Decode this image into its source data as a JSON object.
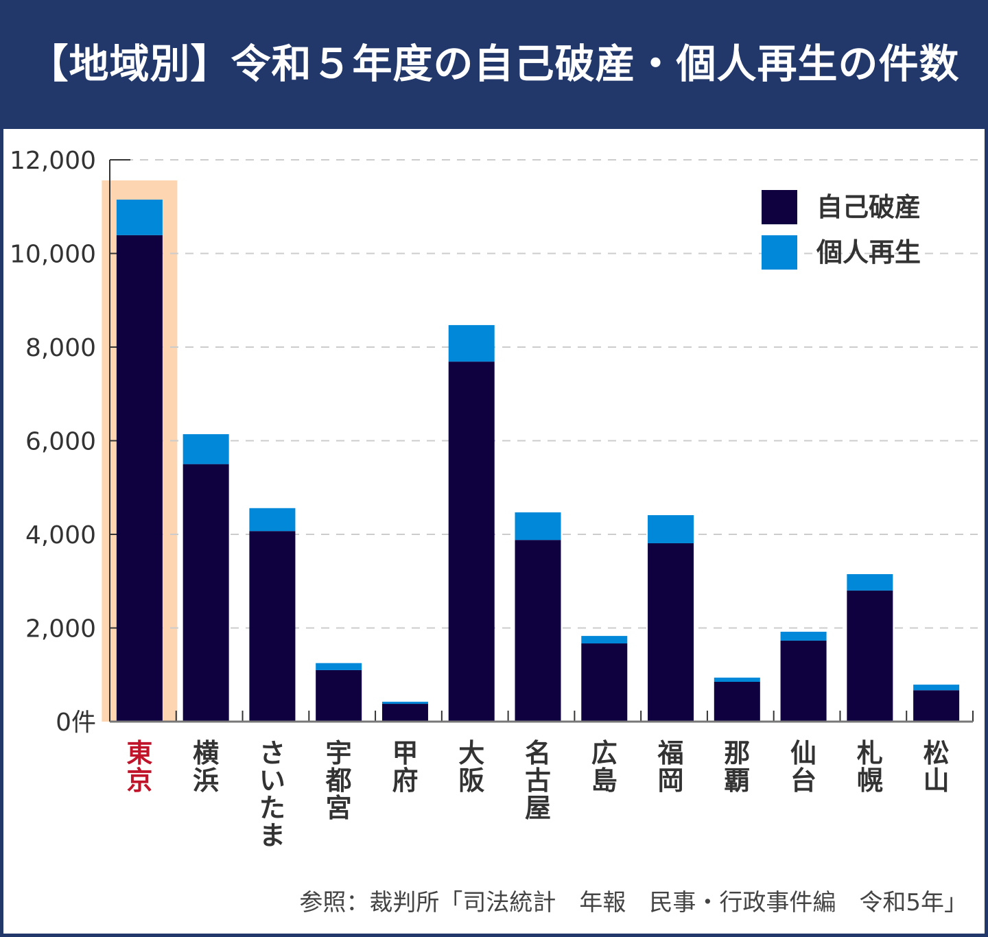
{
  "header": {
    "title": "【地域別】令和５年度の自己破産・個人再生の件数"
  },
  "source": "参照：裁判所「司法統計　年報　民事・行政事件編　令和5年」",
  "colors": {
    "header_bg": "#22386b",
    "bankruptcy": "#0f0040",
    "rehabilitation": "#0288d9",
    "highlight_bg": "#fdd5b0",
    "highlight_text": "#c0142a"
  },
  "chart_data": {
    "type": "bar",
    "stacked": true,
    "title": "【地域別】令和５年度の自己破産・個人再生の件数",
    "categories": [
      "東京",
      "横浜",
      "さいたま",
      "宇都宮",
      "甲府",
      "大阪",
      "名古屋",
      "広島",
      "福岡",
      "那覇",
      "仙台",
      "札幌",
      "松山"
    ],
    "highlighted_category": "東京",
    "series": [
      {
        "name": "自己破産",
        "values": [
          10390,
          5500,
          4070,
          1100,
          380,
          7690,
          3880,
          1670,
          3810,
          850,
          1730,
          2800,
          670
        ]
      },
      {
        "name": "個人再生",
        "values": [
          760,
          640,
          490,
          150,
          45,
          780,
          590,
          160,
          600,
          90,
          190,
          350,
          120
        ]
      }
    ],
    "ylim": [
      0,
      12000
    ],
    "yticks": [
      "0件",
      "2,000",
      "4,000",
      "6,000",
      "8,000",
      "10,000",
      "12,000"
    ],
    "ytick_values": [
      0,
      2000,
      4000,
      6000,
      8000,
      10000,
      12000
    ],
    "grid": true,
    "legend": "top-right"
  }
}
